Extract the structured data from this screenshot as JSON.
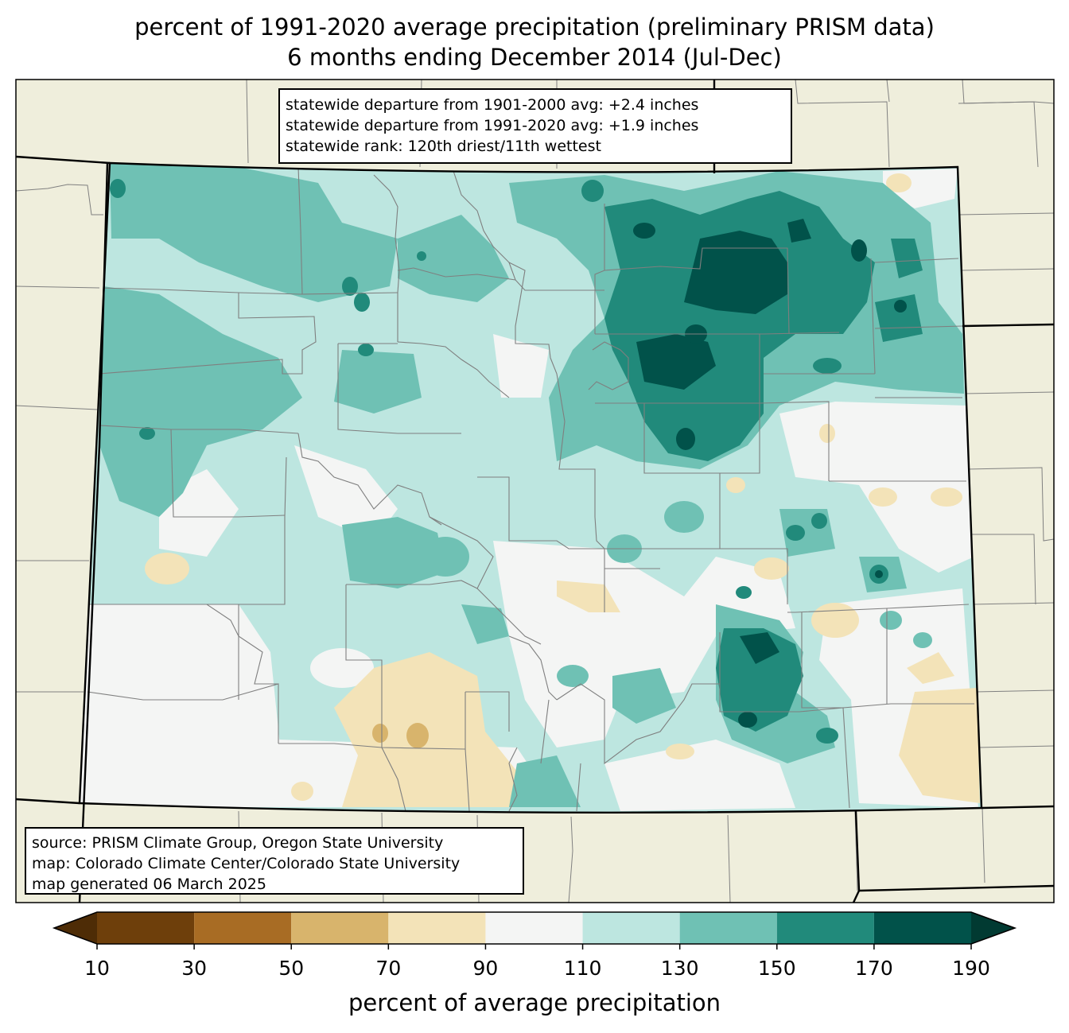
{
  "title": {
    "line1": "percent of 1991-2020 average precipitation (preliminary PRISM data)",
    "line2": "6 months ending December 2014 (Jul-Dec)"
  },
  "stats_box": {
    "line1": "statewide departure from 1901-2000 avg: +2.4 inches",
    "line2": "statewide departure from 1991-2020 avg: +1.9 inches",
    "line3": "statewide rank: 120th driest/11th wettest"
  },
  "credits_box": {
    "line1": "source: PRISM Climate Group, Oregon State University",
    "line2": "map: Colorado Climate Center/Colorado State University",
    "line3": "map generated 06 March 2025"
  },
  "colorbar": {
    "label": "percent of average precipitation",
    "ticks": [
      "10",
      "30",
      "50",
      "70",
      "90",
      "110",
      "130",
      "150",
      "170",
      "190"
    ],
    "bins": [
      {
        "min": 10,
        "max": 30,
        "color": "#6e3f0b"
      },
      {
        "min": 30,
        "max": 50,
        "color": "#a86c24"
      },
      {
        "min": 50,
        "max": 70,
        "color": "#d8b46c"
      },
      {
        "min": 70,
        "max": 90,
        "color": "#f3e3b8"
      },
      {
        "min": 90,
        "max": 110,
        "color": "#f4f5f4"
      },
      {
        "min": 110,
        "max": 130,
        "color": "#bde6e0"
      },
      {
        "min": 130,
        "max": 150,
        "color": "#6fc1b4"
      },
      {
        "min": 150,
        "max": 170,
        "color": "#218a7b"
      },
      {
        "min": 170,
        "max": 190,
        "color": "#01524a"
      }
    ],
    "under_color": "#4e2c06",
    "over_color": "#013a32"
  },
  "colors": {
    "land": "#efeedc",
    "state_border": "#000000",
    "county_border": "#808080"
  }
}
